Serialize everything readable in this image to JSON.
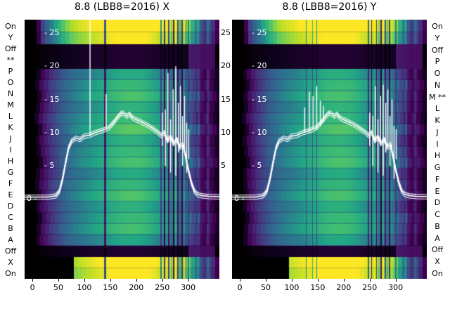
{
  "figure": {
    "background": "#ffffff",
    "text_color": "#000000",
    "line_color": "#ffffff"
  },
  "row_labels_left": [
    "On",
    "Y",
    "Off",
    "**",
    "P",
    "O",
    "N",
    "M",
    "L",
    "K",
    "J",
    "I",
    "H",
    "G",
    "F",
    "E",
    "D",
    "C",
    "B",
    "A",
    "Off",
    "X",
    "On"
  ],
  "row_labels_right": [
    "On",
    "Y",
    "Off",
    "P",
    "O",
    "N",
    "M **",
    "L",
    "K",
    "J",
    "I",
    "H",
    "G",
    "F",
    "E",
    "D",
    "C",
    "B",
    "A",
    "Off",
    "X",
    "On"
  ],
  "y_ticks_inside": [
    {
      "value": 25,
      "label": "- 25"
    },
    {
      "value": 20,
      "label": "- 20"
    },
    {
      "value": 15,
      "label": "- 15"
    },
    {
      "value": 10,
      "label": "- 10"
    },
    {
      "value": 5,
      "label": "- 5"
    }
  ],
  "zero_label": "0 -",
  "between_axis_labels": [
    {
      "value": 25,
      "label": "25"
    },
    {
      "value": 20,
      "label": "20"
    },
    {
      "value": 15,
      "label": "15"
    },
    {
      "value": 10,
      "label": "10"
    },
    {
      "value": 5,
      "label": "5"
    }
  ],
  "chart_data": [
    {
      "type": "heatmap",
      "title": "8.8 (LBB8=2016) X",
      "xlabel": "",
      "ylabel": "",
      "xlim": [
        -15,
        360
      ],
      "ylim": [
        -12,
        27
      ],
      "x_ticks": [
        0,
        50,
        100,
        150,
        200,
        250,
        300
      ],
      "y_ticks": [
        0,
        5,
        10,
        15,
        20,
        25
      ],
      "legend": "none",
      "grid": false,
      "line_color": "#ffffff",
      "row_labels": [
        "On",
        "Y",
        "Off",
        "**",
        "P",
        "O",
        "N",
        "M",
        "L",
        "K",
        "J",
        "I",
        "H",
        "G",
        "F",
        "E",
        "D",
        "C",
        "B",
        "A",
        "Off",
        "X",
        "On"
      ],
      "colormap_stops": [
        [
          0,
          "#000000"
        ],
        [
          0.05,
          "#10021f"
        ],
        [
          0.12,
          "#440154"
        ],
        [
          0.22,
          "#46327e"
        ],
        [
          0.33,
          "#365c8d"
        ],
        [
          0.44,
          "#2a788e"
        ],
        [
          0.54,
          "#21a585"
        ],
        [
          0.64,
          "#3dbc74"
        ],
        [
          0.74,
          "#7ad151"
        ],
        [
          0.85,
          "#bddf26"
        ],
        [
          1,
          "#fde725"
        ]
      ],
      "column_intensity": [
        [
          -15,
          0
        ],
        [
          5,
          0
        ],
        [
          12,
          0.06
        ],
        [
          20,
          0.14
        ],
        [
          30,
          0.2
        ],
        [
          45,
          0.28
        ],
        [
          60,
          0.35
        ],
        [
          75,
          0.42
        ],
        [
          90,
          0.46
        ],
        [
          110,
          0.5
        ],
        [
          130,
          0.54
        ],
        [
          150,
          0.58
        ],
        [
          170,
          0.62
        ],
        [
          190,
          0.63
        ],
        [
          210,
          0.62
        ],
        [
          230,
          0.57
        ],
        [
          245,
          0.52
        ],
        [
          260,
          0.5
        ],
        [
          275,
          0.48
        ],
        [
          290,
          0.45
        ],
        [
          300,
          0.4
        ],
        [
          308,
          0.3
        ],
        [
          318,
          0.22
        ],
        [
          330,
          0.12
        ],
        [
          340,
          0.16
        ],
        [
          350,
          0.1
        ],
        [
          360,
          0.04
        ]
      ],
      "row_factors": [
        0.9,
        1.0,
        1.06,
        0.95,
        1.02,
        1.1,
        0.94,
        1.0,
        1.05,
        0.9,
        0.98,
        1.07,
        0.94,
        1.0,
        1.04,
        0.88
      ],
      "row_offsets": [
        0,
        3,
        -2,
        1,
        4,
        -3,
        2,
        0,
        -4,
        1,
        3,
        -1,
        2,
        -3,
        0,
        2
      ],
      "strip_boost": 1.85,
      "strip_cuts": [
        8,
        80
      ],
      "off_scale": 0.12,
      "off_patch": [
        300,
        352,
        0.13
      ],
      "streaks": [
        [
          140,
          4,
          0.3
        ],
        [
          248,
          3,
          0.5
        ],
        [
          254,
          3,
          0.25
        ],
        [
          259,
          2,
          1.2
        ],
        [
          263,
          3,
          0.3
        ],
        [
          268,
          2,
          0.8
        ],
        [
          272,
          2,
          0.2
        ],
        [
          276,
          3,
          1.2
        ],
        [
          280,
          2,
          0.3
        ],
        [
          284,
          2,
          0.7
        ],
        [
          288,
          2,
          0.25
        ],
        [
          292,
          2,
          1.1
        ],
        [
          296,
          2,
          0.5
        ],
        [
          300,
          3,
          0.6
        ],
        [
          320,
          4,
          1.5
        ],
        [
          338,
          4,
          1.4
        ]
      ],
      "profile_line": [
        [
          -15,
          0.3
        ],
        [
          30,
          0.3
        ],
        [
          45,
          0.5
        ],
        [
          52,
          1.2
        ],
        [
          58,
          3
        ],
        [
          64,
          5.5
        ],
        [
          70,
          7.8
        ],
        [
          76,
          8.8
        ],
        [
          84,
          9.2
        ],
        [
          92,
          9.0
        ],
        [
          100,
          9.5
        ],
        [
          110,
          9.6
        ],
        [
          120,
          10.0
        ],
        [
          130,
          10.2
        ],
        [
          140,
          10.5
        ],
        [
          148,
          10.8
        ],
        [
          154,
          11.3
        ],
        [
          160,
          11.9
        ],
        [
          166,
          12.5
        ],
        [
          172,
          13.0
        ],
        [
          177,
          12.8
        ],
        [
          182,
          12.5
        ],
        [
          187,
          12.8
        ],
        [
          192,
          12.3
        ],
        [
          198,
          12.0
        ],
        [
          205,
          11.8
        ],
        [
          212,
          11.5
        ],
        [
          220,
          11.2
        ],
        [
          228,
          10.8
        ],
        [
          235,
          10.4
        ],
        [
          242,
          10.0
        ],
        [
          248,
          9.6
        ],
        [
          254,
          10.0
        ],
        [
          260,
          8.8
        ],
        [
          266,
          9.4
        ],
        [
          272,
          8.4
        ],
        [
          278,
          9.0
        ],
        [
          284,
          7.8
        ],
        [
          290,
          8.2
        ],
        [
          295,
          6.5
        ],
        [
          300,
          4.5
        ],
        [
          306,
          2.5
        ],
        [
          312,
          1.2
        ],
        [
          318,
          0.7
        ],
        [
          326,
          0.5
        ],
        [
          340,
          0.4
        ],
        [
          360,
          0.35
        ]
      ],
      "spikes": [
        [
          111,
          9.5,
          28
        ],
        [
          142,
          10.5,
          15.8
        ],
        [
          250,
          8,
          13
        ],
        [
          256,
          5,
          13.5
        ],
        [
          261,
          8.5,
          19
        ],
        [
          266,
          4,
          12
        ],
        [
          271,
          8,
          16.5
        ],
        [
          276,
          3.5,
          20
        ],
        [
          281,
          7,
          14.5
        ],
        [
          285,
          8,
          17
        ],
        [
          289,
          5,
          12.5
        ],
        [
          293,
          7.5,
          15.5
        ],
        [
          297,
          4,
          11.5
        ],
        [
          301,
          6,
          10.5
        ]
      ]
    },
    {
      "type": "heatmap",
      "title": "8.8 (LBB8=2016) Y",
      "xlabel": "",
      "ylabel": "",
      "xlim": [
        -15,
        360
      ],
      "ylim": [
        -12,
        27
      ],
      "x_ticks": [
        0,
        50,
        100,
        150,
        200,
        250,
        300
      ],
      "y_ticks": [
        0,
        5,
        10,
        15,
        20,
        25
      ],
      "legend": "none",
      "grid": false,
      "line_color": "#ffffff",
      "row_labels": [
        "On",
        "Y",
        "Off",
        "P",
        "O",
        "N",
        "M **",
        "L",
        "K",
        "J",
        "I",
        "H",
        "G",
        "F",
        "E",
        "D",
        "C",
        "B",
        "A",
        "Off",
        "X",
        "On"
      ],
      "colormap_stops": [
        [
          0,
          "#000000"
        ],
        [
          0.05,
          "#10021f"
        ],
        [
          0.12,
          "#440154"
        ],
        [
          0.22,
          "#46327e"
        ],
        [
          0.33,
          "#365c8d"
        ],
        [
          0.44,
          "#2a788e"
        ],
        [
          0.54,
          "#21a585"
        ],
        [
          0.64,
          "#3dbc74"
        ],
        [
          0.74,
          "#7ad151"
        ],
        [
          0.85,
          "#bddf26"
        ],
        [
          1,
          "#fde725"
        ]
      ],
      "column_intensity": [
        [
          -15,
          0
        ],
        [
          5,
          0
        ],
        [
          12,
          0.06
        ],
        [
          20,
          0.14
        ],
        [
          30,
          0.2
        ],
        [
          45,
          0.28
        ],
        [
          60,
          0.35
        ],
        [
          75,
          0.42
        ],
        [
          90,
          0.46
        ],
        [
          110,
          0.5
        ],
        [
          130,
          0.54
        ],
        [
          150,
          0.58
        ],
        [
          170,
          0.62
        ],
        [
          190,
          0.63
        ],
        [
          210,
          0.62
        ],
        [
          230,
          0.57
        ],
        [
          245,
          0.52
        ],
        [
          260,
          0.5
        ],
        [
          275,
          0.48
        ],
        [
          290,
          0.45
        ],
        [
          300,
          0.4
        ],
        [
          308,
          0.3
        ],
        [
          318,
          0.22
        ],
        [
          330,
          0.12
        ],
        [
          340,
          0.16
        ],
        [
          350,
          0.1
        ],
        [
          360,
          0.04
        ]
      ],
      "row_factors": [
        0.92,
        1.0,
        1.05,
        0.96,
        1.0,
        1.08,
        0.95,
        1.02,
        1.06,
        0.9,
        0.97,
        1.05,
        0.93,
        1.0,
        1.03,
        0.88
      ],
      "row_offsets": [
        2,
        -3,
        1,
        0,
        4,
        -2,
        3,
        0,
        -4,
        2,
        1,
        -1,
        3,
        -3,
        0,
        1
      ],
      "strip_boost": 1.85,
      "strip_cuts": [
        8,
        95
      ],
      "off_scale": 0.12,
      "off_patch": [
        300,
        352,
        0.13
      ],
      "streaks": [
        [
          128,
          2,
          0.5
        ],
        [
          140,
          2,
          0.6
        ],
        [
          148,
          2,
          0.5
        ],
        [
          248,
          3,
          0.4
        ],
        [
          254,
          2,
          0.2
        ],
        [
          259,
          2,
          1.2
        ],
        [
          263,
          2,
          0.3
        ],
        [
          268,
          3,
          0.8
        ],
        [
          272,
          2,
          0.2
        ],
        [
          276,
          2,
          1.15
        ],
        [
          280,
          2,
          0.35
        ],
        [
          284,
          2,
          0.8
        ],
        [
          288,
          2,
          0.3
        ],
        [
          292,
          2,
          1.1
        ],
        [
          300,
          3,
          0.6
        ],
        [
          320,
          3,
          1.4
        ],
        [
          338,
          4,
          1.3
        ]
      ],
      "profile_line": [
        [
          -15,
          0.3
        ],
        [
          30,
          0.3
        ],
        [
          45,
          0.5
        ],
        [
          52,
          1.2
        ],
        [
          58,
          3
        ],
        [
          64,
          5.5
        ],
        [
          70,
          7.8
        ],
        [
          76,
          8.8
        ],
        [
          84,
          9.2
        ],
        [
          92,
          9.0
        ],
        [
          100,
          9.5
        ],
        [
          110,
          9.6
        ],
        [
          120,
          10.0
        ],
        [
          130,
          10.2
        ],
        [
          140,
          10.5
        ],
        [
          148,
          10.8
        ],
        [
          154,
          11.3
        ],
        [
          160,
          11.9
        ],
        [
          166,
          12.5
        ],
        [
          172,
          13.0
        ],
        [
          177,
          12.8
        ],
        [
          182,
          12.5
        ],
        [
          187,
          12.8
        ],
        [
          192,
          12.3
        ],
        [
          198,
          12.0
        ],
        [
          205,
          11.8
        ],
        [
          212,
          11.5
        ],
        [
          220,
          11.2
        ],
        [
          228,
          10.8
        ],
        [
          235,
          10.4
        ],
        [
          242,
          10.0
        ],
        [
          248,
          9.6
        ],
        [
          254,
          10.0
        ],
        [
          260,
          8.8
        ],
        [
          266,
          9.4
        ],
        [
          272,
          8.4
        ],
        [
          278,
          9.0
        ],
        [
          284,
          7.8
        ],
        [
          290,
          8.2
        ],
        [
          295,
          6.5
        ],
        [
          300,
          4.5
        ],
        [
          306,
          2.5
        ],
        [
          312,
          1.2
        ],
        [
          318,
          0.7
        ],
        [
          326,
          0.5
        ],
        [
          340,
          0.4
        ],
        [
          360,
          0.35
        ]
      ],
      "spikes": [
        [
          125,
          10,
          13.8
        ],
        [
          134,
          10,
          16.2
        ],
        [
          141,
          10.5,
          15.5
        ],
        [
          148,
          10.5,
          17
        ],
        [
          155,
          11,
          14.8
        ],
        [
          161,
          11.5,
          14
        ],
        [
          250,
          8,
          13
        ],
        [
          256,
          5,
          12.5
        ],
        [
          261,
          8.5,
          17
        ],
        [
          266,
          4,
          12
        ],
        [
          271,
          8,
          15.5
        ],
        [
          276,
          3.5,
          17.2
        ],
        [
          281,
          7,
          14.5
        ],
        [
          285,
          8,
          16.5
        ],
        [
          289,
          5,
          12.5
        ],
        [
          293,
          7.5,
          15
        ],
        [
          297,
          3,
          11
        ],
        [
          301,
          6,
          10.5
        ]
      ]
    }
  ]
}
